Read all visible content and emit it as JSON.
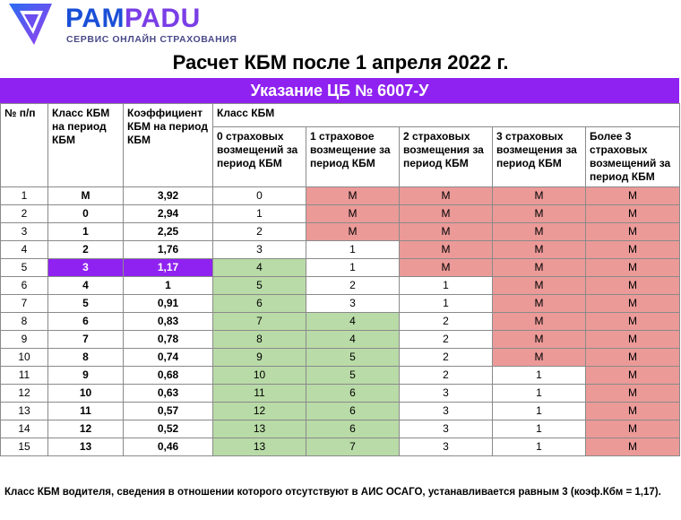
{
  "brand": {
    "name_part1": "PAM",
    "name_part2": "PADU",
    "tagline": "СЕРВИС ОНЛАЙН СТРАХОВАНИЯ",
    "colors": {
      "blue": "#1a4fd6",
      "violet": "#7a3ee6",
      "accent": "#8f22f0"
    }
  },
  "title": "Расчет КБМ после 1 апреля 2022 г.",
  "band_title": "Указание ЦБ № 6007-У",
  "headers": {
    "num": "№ п/п",
    "class_period": "Класс КБМ на период КБМ",
    "coef": "Коэффициент КБМ на период КБМ",
    "group": "Класс КБМ",
    "c0": "0 страховых возмещений за период КБМ",
    "c1": "1 страховое возмещение за период КБМ",
    "c2": "2 страховых возмещения за период КБМ",
    "c3": "3 страховых возмещения за период КБМ",
    "c4": "Более 3 страховых возмещений за период КБМ"
  },
  "rows": [
    {
      "n": "1",
      "cls": "М",
      "k": "3,92",
      "c": [
        "0",
        "М",
        "М",
        "М",
        "М"
      ]
    },
    {
      "n": "2",
      "cls": "0",
      "k": "2,94",
      "c": [
        "1",
        "М",
        "М",
        "М",
        "М"
      ]
    },
    {
      "n": "3",
      "cls": "1",
      "k": "2,25",
      "c": [
        "2",
        "М",
        "М",
        "М",
        "М"
      ]
    },
    {
      "n": "4",
      "cls": "2",
      "k": "1,76",
      "c": [
        "3",
        "1",
        "М",
        "М",
        "М"
      ]
    },
    {
      "n": "5",
      "cls": "3",
      "k": "1,17",
      "c": [
        "4",
        "1",
        "М",
        "М",
        "М"
      ]
    },
    {
      "n": "6",
      "cls": "4",
      "k": "1",
      "c": [
        "5",
        "2",
        "1",
        "М",
        "М"
      ]
    },
    {
      "n": "7",
      "cls": "5",
      "k": "0,91",
      "c": [
        "6",
        "3",
        "1",
        "М",
        "М"
      ]
    },
    {
      "n": "8",
      "cls": "6",
      "k": "0,83",
      "c": [
        "7",
        "4",
        "2",
        "М",
        "М"
      ]
    },
    {
      "n": "9",
      "cls": "7",
      "k": "0,78",
      "c": [
        "8",
        "4",
        "2",
        "М",
        "М"
      ]
    },
    {
      "n": "10",
      "cls": "8",
      "k": "0,74",
      "c": [
        "9",
        "5",
        "2",
        "М",
        "М"
      ]
    },
    {
      "n": "11",
      "cls": "9",
      "k": "0,68",
      "c": [
        "10",
        "5",
        "2",
        "1",
        "М"
      ]
    },
    {
      "n": "12",
      "cls": "10",
      "k": "0,63",
      "c": [
        "11",
        "6",
        "3",
        "1",
        "М"
      ]
    },
    {
      "n": "13",
      "cls": "11",
      "k": "0,57",
      "c": [
        "12",
        "6",
        "3",
        "1",
        "М"
      ]
    },
    {
      "n": "14",
      "cls": "12",
      "k": "0,52",
      "c": [
        "13",
        "6",
        "3",
        "1",
        "М"
      ]
    },
    {
      "n": "15",
      "cls": "13",
      "k": "0,46",
      "c": [
        "13",
        "7",
        "3",
        "1",
        "М"
      ]
    }
  ],
  "cell_colors": {
    "green": "#b9dba7",
    "red": "#eb9a98",
    "highlight": "#8f22f0"
  },
  "highlight_row_index": 4,
  "footnote": "Класс КБМ водителя, сведения в отношении которого отсутствуют в АИС ОСАГО, устанавливается равным 3 (коэф.Кбм = 1,17)."
}
